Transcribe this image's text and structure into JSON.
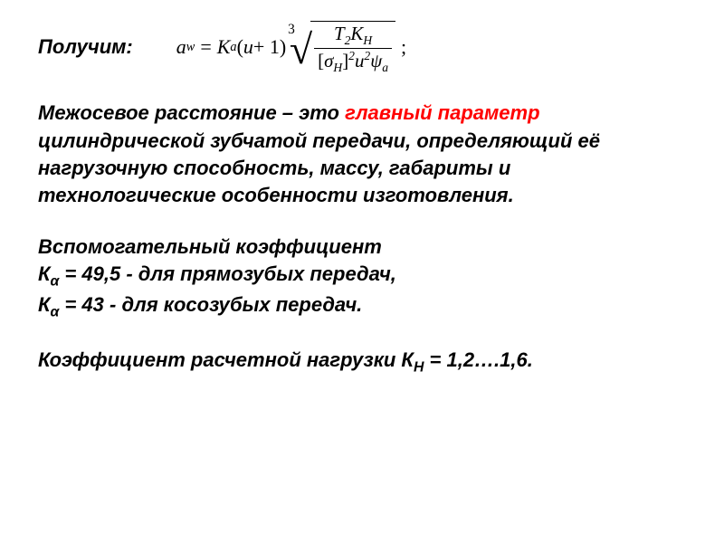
{
  "colors": {
    "text": "#000000",
    "highlight": "#ff0000",
    "background": "#ffffff"
  },
  "typography": {
    "body_font": "Arial",
    "body_size_pt": 17,
    "body_weight": "bold",
    "body_style": "italic",
    "formula_font": "Times New Roman",
    "formula_style": "italic"
  },
  "lead_label": "Получим:",
  "formula": {
    "lhs_var": "a",
    "lhs_sub": "w",
    "eq": "=",
    "K": "K",
    "K_sub": "a",
    "open": "(",
    "u": "u",
    "plus1": " + 1",
    "close": ")",
    "root_index": "3",
    "num_T": "T",
    "num_T_sub": "2",
    "num_K": "K",
    "num_K_sub": "H",
    "den_open": "[",
    "den_sigma": "σ",
    "den_sigma_sub": "H",
    "den_close": "]",
    "den_sq1": "2",
    "den_u": "u",
    "den_sq2": "2",
    "den_psi": "ψ",
    "den_psi_sub": "a",
    "tail": ";"
  },
  "p1a": "Межосевое расстояние – это ",
  "p1b": "главный параметр",
  "p1c": " цилиндрической зубчатой передачи, определяющий её нагрузочную способность, массу, габариты и технологические особенности изготовления.",
  "p2_l1": "Вспомогательный коэффициент",
  "p2_K": "К",
  "p2_alpha": "α",
  "p2_l2a": "  = 49,5 - для прямозубых передач,",
  "p2_l3a": "  = 43 - для косозубых передач.",
  "p3a": "Коэффициент расчетной нагрузки К",
  "p3_sub": "Н",
  "p3b": "  = 1,2….1,6."
}
